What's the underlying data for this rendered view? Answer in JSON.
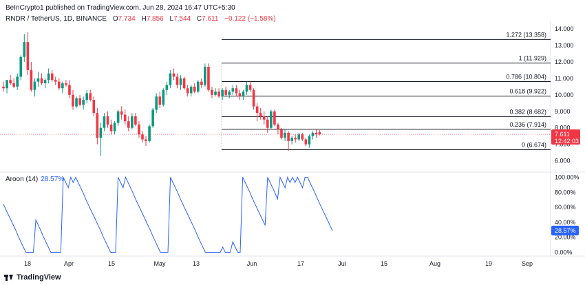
{
  "header": {
    "published": "BeInCrypto1 published on TradingView.com, Jun 28, 2024 16:47 UTC+5:30",
    "symbol": "RNDR / TetherUS, 1D, BINANCE",
    "open_label": "O",
    "open": "7.734",
    "high_label": "H",
    "high": "7.856",
    "low_label": "L",
    "low": "7.544",
    "close_label": "C",
    "close": "7.611",
    "change": "−0.122 (−1.58%)"
  },
  "colors": {
    "up": "#089981",
    "down": "#f23645",
    "aroon": "#2962ff",
    "fib": "#131722"
  },
  "chart_data": [
    {
      "type": "candlestick",
      "title": "RNDR / TetherUS, 1D, BINANCE",
      "y_ticks": [
        "14.000",
        "13.000",
        "12.000",
        "11.000",
        "10.000",
        "9.000",
        "8.000",
        "7.000",
        "6.000"
      ],
      "ylim": [
        5.4,
        14.5
      ],
      "x_ticks": [
        "18",
        "Apr",
        "15",
        "May",
        "13",
        "Jun",
        "17",
        "Jul",
        "15",
        "Aug",
        "19",
        "Sep"
      ],
      "price_label": {
        "value": "7.611",
        "countdown": "12:42:03"
      },
      "fib_levels": [
        {
          "label": "1.272 (13.358)",
          "value": 13.358
        },
        {
          "label": "1 (11.929)",
          "value": 11.929
        },
        {
          "label": "0.786 (10.804)",
          "value": 10.804
        },
        {
          "label": "0.618 (9.922)",
          "value": 9.922
        },
        {
          "label": "0.382 (8.682)",
          "value": 8.682
        },
        {
          "label": "0.236 (7.914)",
          "value": 7.914
        },
        {
          "label": "0 (6.674)",
          "value": 6.674
        }
      ],
      "candles": [
        [
          10.5,
          10.8,
          10.2,
          10.4
        ],
        [
          10.4,
          10.9,
          10.1,
          10.9
        ],
        [
          10.9,
          11.2,
          10.6,
          10.7
        ],
        [
          10.7,
          11.0,
          10.4,
          10.5
        ],
        [
          10.5,
          11.3,
          10.3,
          11.1
        ],
        [
          11.1,
          12.4,
          10.9,
          12.3
        ],
        [
          12.3,
          13.7,
          12.0,
          13.2
        ],
        [
          13.2,
          13.8,
          11.2,
          11.5
        ],
        [
          11.5,
          12.0,
          10.2,
          10.3
        ],
        [
          10.3,
          11.0,
          9.9,
          10.8
        ],
        [
          10.8,
          11.4,
          10.5,
          11.0
        ],
        [
          11.0,
          11.3,
          10.6,
          10.7
        ],
        [
          10.7,
          11.0,
          10.4,
          10.9
        ],
        [
          10.9,
          11.6,
          10.7,
          11.3
        ],
        [
          11.3,
          11.5,
          10.8,
          10.9
        ],
        [
          10.9,
          11.1,
          10.6,
          10.8
        ],
        [
          10.8,
          11.0,
          10.3,
          10.4
        ],
        [
          10.4,
          10.8,
          10.1,
          10.7
        ],
        [
          10.7,
          10.9,
          10.5,
          10.6
        ],
        [
          10.6,
          10.9,
          9.8,
          10.0
        ],
        [
          10.0,
          10.3,
          9.1,
          9.3
        ],
        [
          9.3,
          9.9,
          9.2,
          9.8
        ],
        [
          9.8,
          10.0,
          9.3,
          9.4
        ],
        [
          9.4,
          9.9,
          9.1,
          9.7
        ],
        [
          9.7,
          10.3,
          9.5,
          10.1
        ],
        [
          10.1,
          10.3,
          9.6,
          9.7
        ],
        [
          9.7,
          9.9,
          8.7,
          8.9
        ],
        [
          8.9,
          9.2,
          7.0,
          7.4
        ],
        [
          7.4,
          8.3,
          6.3,
          8.0
        ],
        [
          8.0,
          8.9,
          7.8,
          8.7
        ],
        [
          8.7,
          9.0,
          8.0,
          8.2
        ],
        [
          8.2,
          8.5,
          7.6,
          7.8
        ],
        [
          7.8,
          8.4,
          7.6,
          8.3
        ],
        [
          8.3,
          9.1,
          8.1,
          9.0
        ],
        [
          9.0,
          9.3,
          8.5,
          8.8
        ],
        [
          8.8,
          9.1,
          8.2,
          8.4
        ],
        [
          8.4,
          8.7,
          7.8,
          8.0
        ],
        [
          8.0,
          8.9,
          7.9,
          8.7
        ],
        [
          8.7,
          8.9,
          8.1,
          8.2
        ],
        [
          8.2,
          8.4,
          7.4,
          7.6
        ],
        [
          7.6,
          7.8,
          7.1,
          7.3
        ],
        [
          7.3,
          7.5,
          6.9,
          7.2
        ],
        [
          7.2,
          8.2,
          7.1,
          8.1
        ],
        [
          8.1,
          9.2,
          8.0,
          9.1
        ],
        [
          9.1,
          10.1,
          8.9,
          9.9
        ],
        [
          9.9,
          10.2,
          9.2,
          9.4
        ],
        [
          9.4,
          10.4,
          9.3,
          10.3
        ],
        [
          10.3,
          10.8,
          10.0,
          10.6
        ],
        [
          10.6,
          11.5,
          10.4,
          11.3
        ],
        [
          11.3,
          11.6,
          10.9,
          11.1
        ],
        [
          11.1,
          11.3,
          10.4,
          10.6
        ],
        [
          10.6,
          11.2,
          10.3,
          11.0
        ],
        [
          11.0,
          11.1,
          10.3,
          10.4
        ],
        [
          10.4,
          10.6,
          9.9,
          10.1
        ],
        [
          10.1,
          10.6,
          9.9,
          10.5
        ],
        [
          10.5,
          10.7,
          10.1,
          10.2
        ],
        [
          10.2,
          10.9,
          10.1,
          10.8
        ],
        [
          10.8,
          11.0,
          10.4,
          10.6
        ],
        [
          10.6,
          11.9,
          10.5,
          11.7
        ],
        [
          11.7,
          11.9,
          10.2,
          10.3
        ],
        [
          10.3,
          10.5,
          9.8,
          10.0
        ],
        [
          10.0,
          10.4,
          9.9,
          10.2
        ],
        [
          10.2,
          10.4,
          9.8,
          9.9
        ],
        [
          9.9,
          10.4,
          9.7,
          10.3
        ],
        [
          10.3,
          10.5,
          9.9,
          10.0
        ],
        [
          10.0,
          10.3,
          9.8,
          10.2
        ],
        [
          10.2,
          10.6,
          10.0,
          10.4
        ],
        [
          10.4,
          10.6,
          9.9,
          10.1
        ],
        [
          10.1,
          10.3,
          9.7,
          9.9
        ],
        [
          9.9,
          10.3,
          9.7,
          10.2
        ],
        [
          10.2,
          10.8,
          10.0,
          10.6
        ],
        [
          10.6,
          10.8,
          10.2,
          10.3
        ],
        [
          10.3,
          10.4,
          9.1,
          9.3
        ],
        [
          9.3,
          9.5,
          8.4,
          8.9
        ],
        [
          8.9,
          9.2,
          8.5,
          8.7
        ],
        [
          8.7,
          9.0,
          8.2,
          8.5
        ],
        [
          8.5,
          8.7,
          7.7,
          8.0
        ],
        [
          8.0,
          9.1,
          7.9,
          9.0
        ],
        [
          9.0,
          9.1,
          8.1,
          8.2
        ],
        [
          8.2,
          8.3,
          7.6,
          7.9
        ],
        [
          7.9,
          8.0,
          7.3,
          7.4
        ],
        [
          7.4,
          7.9,
          7.2,
          7.7
        ],
        [
          7.7,
          7.8,
          6.6,
          7.2
        ],
        [
          7.2,
          7.5,
          7.0,
          7.4
        ],
        [
          7.4,
          7.6,
          7.1,
          7.3
        ],
        [
          7.3,
          7.7,
          7.2,
          7.6
        ],
        [
          7.6,
          7.7,
          7.2,
          7.3
        ],
        [
          7.3,
          7.4,
          6.9,
          7.0
        ],
        [
          7.0,
          7.6,
          6.8,
          7.5
        ],
        [
          7.5,
          7.8,
          7.3,
          7.7
        ],
        [
          7.7,
          7.9,
          7.4,
          7.6
        ],
        [
          7.734,
          7.856,
          7.544,
          7.611
        ]
      ]
    },
    {
      "type": "line",
      "title": "Aroon (14)",
      "series": [
        {
          "name": "Aroon (14)",
          "last_value": "28.57%"
        }
      ],
      "y_ticks": [
        "100.00%",
        "80.00%",
        "60.00%",
        "40.00%",
        "20.00%",
        "0.00%"
      ],
      "ylim": [
        -5,
        105
      ],
      "values": [
        64,
        57,
        50,
        43,
        36,
        29,
        21,
        14,
        7,
        0,
        0,
        0,
        0,
        43,
        36,
        29,
        21,
        14,
        7,
        0,
        0,
        0,
        0,
        0,
        100,
        93,
        86,
        100,
        93,
        100,
        93,
        86,
        79,
        71,
        64,
        57,
        50,
        43,
        36,
        29,
        21,
        14,
        7,
        0,
        0,
        0,
        100,
        93,
        86,
        100,
        93,
        86,
        79,
        71,
        64,
        57,
        50,
        43,
        36,
        29,
        21,
        14,
        7,
        0,
        0,
        0,
        0,
        100,
        93,
        86,
        79,
        71,
        64,
        57,
        50,
        43,
        36,
        29,
        21,
        14,
        7,
        0,
        0,
        0,
        0,
        0,
        0,
        0,
        7,
        0,
        0,
        0,
        14,
        7,
        0,
        0,
        100,
        93,
        86,
        79,
        71,
        64,
        57,
        50,
        43,
        36,
        100,
        93,
        86,
        79,
        71,
        100,
        93,
        86,
        100,
        93,
        100,
        93,
        100,
        93,
        86,
        100,
        100,
        93,
        86,
        79,
        71,
        64,
        57,
        50,
        43,
        36,
        29
      ]
    }
  ],
  "aroon_label": "Aroon (14)",
  "aroon_value": "28.57%",
  "brand": "TradingView"
}
